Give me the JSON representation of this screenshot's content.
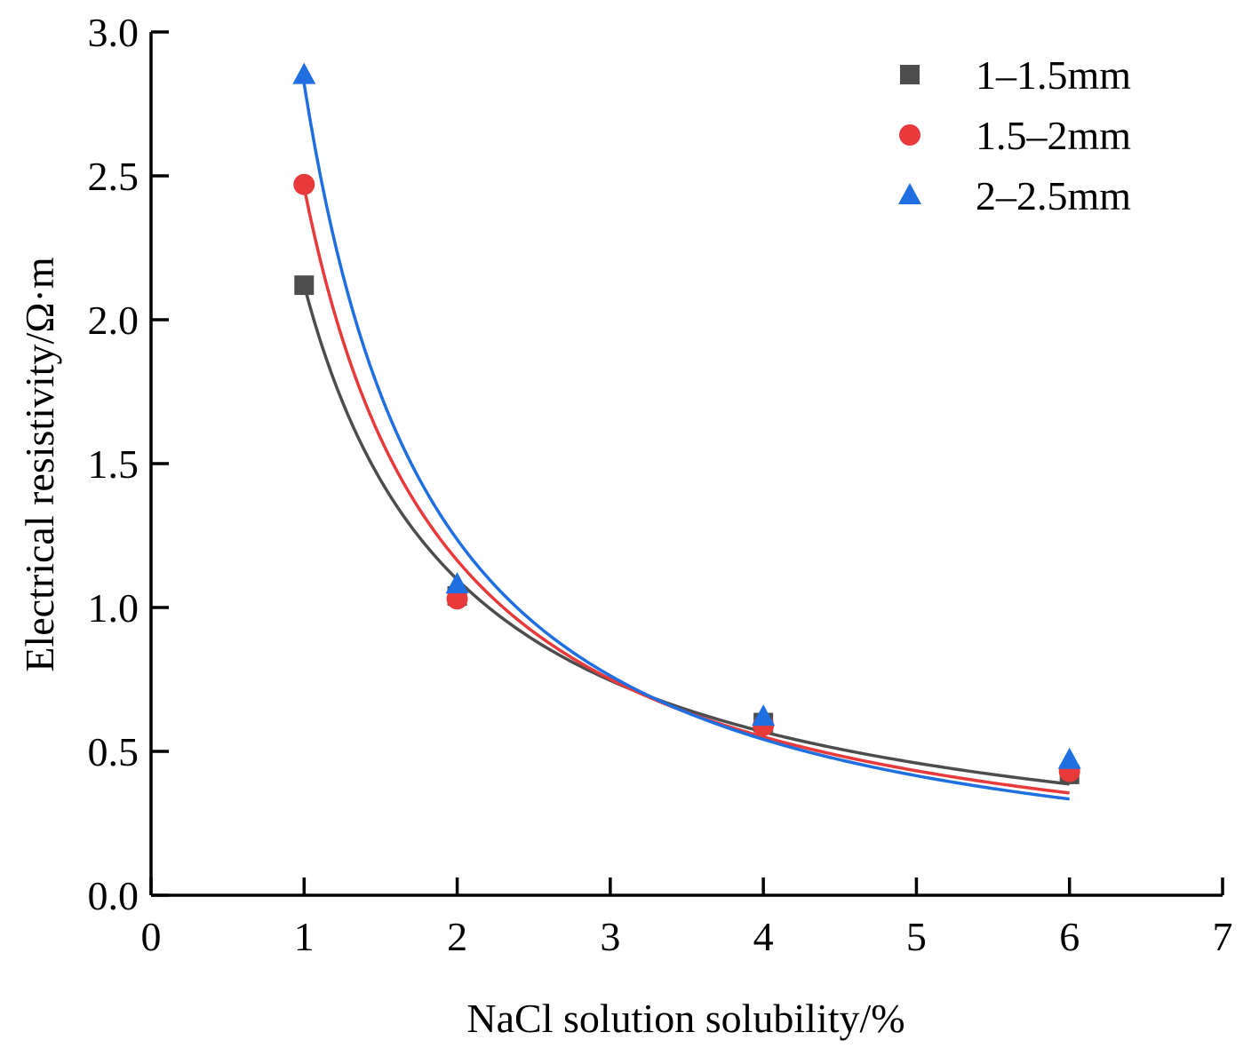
{
  "chart_data": {
    "type": "scatter",
    "title": "",
    "xlabel": "NaCl solution solubility/%",
    "ylabel": "Electrical resistivity/Ω·m",
    "xlim": [
      0,
      7
    ],
    "ylim": [
      0,
      3.0
    ],
    "x_ticks": [
      0,
      1,
      2,
      3,
      4,
      5,
      6,
      7
    ],
    "x_tick_labels": [
      "0",
      "1",
      "2",
      "3",
      "4",
      "5",
      "6",
      "7"
    ],
    "y_ticks": [
      0,
      0.5,
      1.0,
      1.5,
      2.0,
      2.5,
      3.0
    ],
    "y_tick_labels": [
      "0.0",
      "0.5",
      "1.0",
      "1.5",
      "2.0",
      "2.5",
      "3.0"
    ],
    "grid": false,
    "legend_position": "top-right",
    "series": [
      {
        "name": "1–1.5mm",
        "marker": "square",
        "color": "#4d4d4d",
        "x": [
          1,
          2,
          4,
          6
        ],
        "values": [
          2.12,
          1.04,
          0.6,
          0.42
        ],
        "fit": {
          "model": "power",
          "a": 2.12,
          "b": 0.95
        }
      },
      {
        "name": "1.5–2mm",
        "marker": "circle",
        "color": "#e8393b",
        "x": [
          1,
          2,
          4,
          6
        ],
        "values": [
          2.47,
          1.03,
          0.59,
          0.43
        ],
        "fit": {
          "model": "power",
          "a": 2.46,
          "b": 1.08
        }
      },
      {
        "name": "2–2.5mm",
        "marker": "triangle",
        "color": "#1f6fe0",
        "x": [
          1,
          2,
          4,
          6
        ],
        "values": [
          2.85,
          1.08,
          0.62,
          0.47
        ],
        "fit": {
          "model": "power",
          "a": 2.82,
          "b": 1.19
        }
      }
    ]
  }
}
